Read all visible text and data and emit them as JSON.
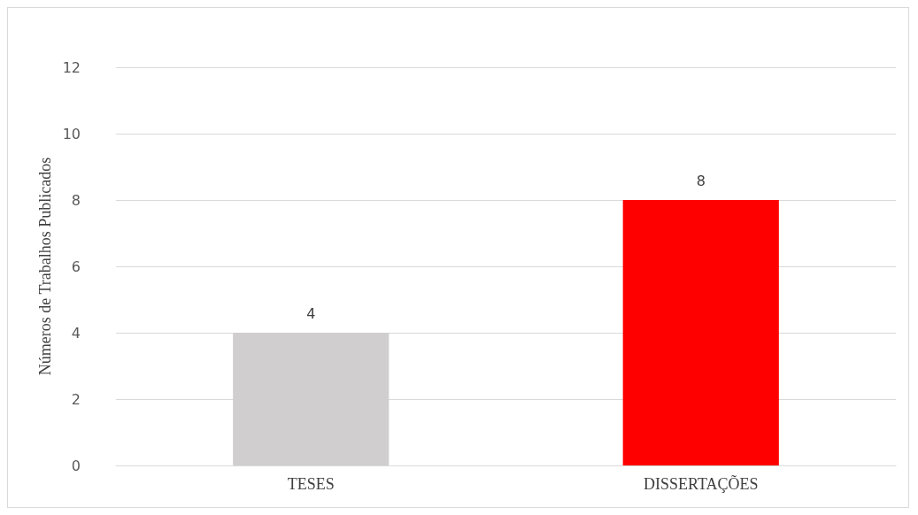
{
  "chart_data": {
    "type": "bar",
    "ylabel": "Números de Trabalhos Publicados",
    "categories": [
      "TESES",
      "DISSERTAÇÕES"
    ],
    "values": [
      4,
      8
    ],
    "colors": [
      "#d0cece",
      "#ff0000"
    ],
    "ylim": [
      0,
      12
    ],
    "yticks": [
      0,
      2,
      4,
      6,
      8,
      10,
      12
    ],
    "grid": "y",
    "data_labels": true
  }
}
